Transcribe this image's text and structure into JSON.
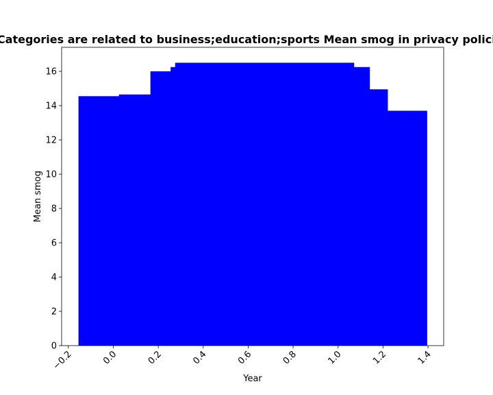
{
  "chart_data": {
    "type": "bar",
    "title": "Categories are related to business;education;sports Mean smog in privacy policies",
    "xlabel": "Year",
    "ylabel": "Mean smog",
    "xlim": [
      -0.23,
      1.47
    ],
    "ylim": [
      0,
      17.4
    ],
    "xticks": [
      -0.2,
      0.0,
      0.2,
      0.4,
      0.6,
      0.8,
      1.0,
      1.2,
      1.4
    ],
    "xtick_labels": [
      "−0.2",
      "0.0",
      "0.2",
      "0.4",
      "0.6",
      "0.8",
      "1.0",
      "1.2",
      "1.4"
    ],
    "yticks": [
      0,
      2,
      4,
      6,
      8,
      10,
      12,
      14,
      16
    ],
    "ytick_labels": [
      "0",
      "2",
      "4",
      "6",
      "8",
      "10",
      "12",
      "14",
      "16"
    ],
    "bar_color": "#0000ff",
    "grid": false,
    "bars": [
      {
        "x0": -0.155,
        "x1": 0.025,
        "value": 14.55
      },
      {
        "x0": 0.025,
        "x1": 0.165,
        "value": 14.65
      },
      {
        "x0": 0.165,
        "x1": 0.255,
        "value": 16.0
      },
      {
        "x0": 0.255,
        "x1": 0.275,
        "value": 16.25
      },
      {
        "x0": 0.275,
        "x1": 1.07,
        "value": 16.5
      },
      {
        "x0": 1.07,
        "x1": 1.14,
        "value": 16.25
      },
      {
        "x0": 1.14,
        "x1": 1.22,
        "value": 14.95
      },
      {
        "x0": 1.22,
        "x1": 1.395,
        "value": 13.7
      }
    ]
  }
}
